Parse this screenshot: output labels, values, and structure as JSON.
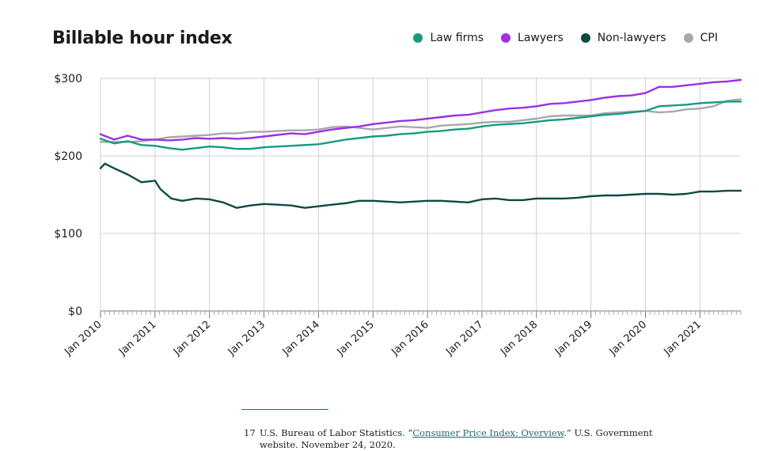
{
  "chart_data": {
    "type": "line",
    "title": "Billable hour index",
    "ylim": [
      0,
      300
    ],
    "y_ticks": [
      "$0",
      "$100",
      "$200",
      "$300"
    ],
    "x_ticks": [
      "Jan 2010",
      "Jan 2011",
      "Jan 2012",
      "Jan 2013",
      "Jan 2014",
      "Jan 2015",
      "Jan 2016",
      "Jan 2017",
      "Jan 2018",
      "Jan 2019",
      "Jan 2020",
      "Jan 2021"
    ],
    "x_range": [
      "2010-01",
      "2021-09"
    ],
    "grid": "vertical yearly lines and horizontal lines at each y tick",
    "legend_position": "top-right",
    "series": [
      {
        "name": "Law firms",
        "color": "#179b80",
        "points": [
          [
            2010.0,
            222
          ],
          [
            2010.25,
            216
          ],
          [
            2010.5,
            219
          ],
          [
            2010.75,
            214
          ],
          [
            2011.0,
            213
          ],
          [
            2011.25,
            210
          ],
          [
            2011.5,
            208
          ],
          [
            2011.75,
            210
          ],
          [
            2012.0,
            212
          ],
          [
            2012.25,
            211
          ],
          [
            2012.5,
            209
          ],
          [
            2012.75,
            209
          ],
          [
            2013.0,
            211
          ],
          [
            2013.25,
            212
          ],
          [
            2013.5,
            213
          ],
          [
            2013.75,
            214
          ],
          [
            2014.0,
            215
          ],
          [
            2014.25,
            218
          ],
          [
            2014.5,
            221
          ],
          [
            2014.75,
            223
          ],
          [
            2015.0,
            225
          ],
          [
            2015.25,
            226
          ],
          [
            2015.5,
            228
          ],
          [
            2015.75,
            229
          ],
          [
            2016.0,
            231
          ],
          [
            2016.25,
            232
          ],
          [
            2016.5,
            234
          ],
          [
            2016.75,
            235
          ],
          [
            2017.0,
            238
          ],
          [
            2017.25,
            240
          ],
          [
            2017.5,
            241
          ],
          [
            2017.75,
            242
          ],
          [
            2018.0,
            244
          ],
          [
            2018.25,
            246
          ],
          [
            2018.5,
            247
          ],
          [
            2018.75,
            249
          ],
          [
            2019.0,
            251
          ],
          [
            2019.25,
            253
          ],
          [
            2019.5,
            254
          ],
          [
            2019.75,
            256
          ],
          [
            2020.0,
            258
          ],
          [
            2020.25,
            264
          ],
          [
            2020.5,
            265
          ],
          [
            2020.75,
            266
          ],
          [
            2021.0,
            268
          ],
          [
            2021.25,
            269
          ],
          [
            2021.5,
            270
          ],
          [
            2021.75,
            270
          ]
        ]
      },
      {
        "name": "Lawyers",
        "color": "#9b30e6",
        "points": [
          [
            2010.0,
            228
          ],
          [
            2010.25,
            221
          ],
          [
            2010.5,
            226
          ],
          [
            2010.75,
            221
          ],
          [
            2011.0,
            221
          ],
          [
            2011.25,
            220
          ],
          [
            2011.5,
            221
          ],
          [
            2011.75,
            223
          ],
          [
            2012.0,
            222
          ],
          [
            2012.25,
            223
          ],
          [
            2012.5,
            222
          ],
          [
            2012.75,
            223
          ],
          [
            2013.0,
            225
          ],
          [
            2013.25,
            227
          ],
          [
            2013.5,
            229
          ],
          [
            2013.75,
            228
          ],
          [
            2014.0,
            231
          ],
          [
            2014.25,
            234
          ],
          [
            2014.5,
            236
          ],
          [
            2014.75,
            238
          ],
          [
            2015.0,
            241
          ],
          [
            2015.25,
            243
          ],
          [
            2015.5,
            245
          ],
          [
            2015.75,
            246
          ],
          [
            2016.0,
            248
          ],
          [
            2016.25,
            250
          ],
          [
            2016.5,
            252
          ],
          [
            2016.75,
            253
          ],
          [
            2017.0,
            256
          ],
          [
            2017.25,
            259
          ],
          [
            2017.5,
            261
          ],
          [
            2017.75,
            262
          ],
          [
            2018.0,
            264
          ],
          [
            2018.25,
            267
          ],
          [
            2018.5,
            268
          ],
          [
            2018.75,
            270
          ],
          [
            2019.0,
            272
          ],
          [
            2019.25,
            275
          ],
          [
            2019.5,
            277
          ],
          [
            2019.75,
            278
          ],
          [
            2020.0,
            281
          ],
          [
            2020.25,
            289
          ],
          [
            2020.5,
            289
          ],
          [
            2020.75,
            291
          ],
          [
            2021.0,
            293
          ],
          [
            2021.25,
            295
          ],
          [
            2021.5,
            296
          ],
          [
            2021.75,
            298
          ]
        ]
      },
      {
        "name": "Non-lawyers",
        "color": "#0e4a44",
        "points": [
          [
            2010.0,
            184
          ],
          [
            2010.08,
            190
          ],
          [
            2010.25,
            184
          ],
          [
            2010.5,
            176
          ],
          [
            2010.75,
            166
          ],
          [
            2011.0,
            168
          ],
          [
            2011.1,
            157
          ],
          [
            2011.3,
            145
          ],
          [
            2011.5,
            142
          ],
          [
            2011.75,
            145
          ],
          [
            2012.0,
            144
          ],
          [
            2012.25,
            140
          ],
          [
            2012.5,
            133
          ],
          [
            2012.75,
            136
          ],
          [
            2013.0,
            138
          ],
          [
            2013.25,
            137
          ],
          [
            2013.5,
            136
          ],
          [
            2013.75,
            133
          ],
          [
            2014.0,
            135
          ],
          [
            2014.25,
            137
          ],
          [
            2014.5,
            139
          ],
          [
            2014.75,
            142
          ],
          [
            2015.0,
            142
          ],
          [
            2015.25,
            141
          ],
          [
            2015.5,
            140
          ],
          [
            2015.75,
            141
          ],
          [
            2016.0,
            142
          ],
          [
            2016.25,
            142
          ],
          [
            2016.5,
            141
          ],
          [
            2016.75,
            140
          ],
          [
            2017.0,
            144
          ],
          [
            2017.25,
            145
          ],
          [
            2017.5,
            143
          ],
          [
            2017.75,
            143
          ],
          [
            2018.0,
            145
          ],
          [
            2018.25,
            145
          ],
          [
            2018.5,
            145
          ],
          [
            2018.75,
            146
          ],
          [
            2019.0,
            148
          ],
          [
            2019.25,
            149
          ],
          [
            2019.5,
            149
          ],
          [
            2019.75,
            150
          ],
          [
            2020.0,
            151
          ],
          [
            2020.25,
            151
          ],
          [
            2020.5,
            150
          ],
          [
            2020.75,
            151
          ],
          [
            2021.0,
            154
          ],
          [
            2021.25,
            154
          ],
          [
            2021.5,
            155
          ],
          [
            2021.75,
            155
          ]
        ]
      },
      {
        "name": "CPI",
        "color": "#a8a8a8",
        "points": [
          [
            2010.0,
            218
          ],
          [
            2010.25,
            218
          ],
          [
            2010.5,
            218
          ],
          [
            2010.75,
            219
          ],
          [
            2011.0,
            221
          ],
          [
            2011.25,
            224
          ],
          [
            2011.5,
            225
          ],
          [
            2011.75,
            226
          ],
          [
            2012.0,
            227
          ],
          [
            2012.25,
            229
          ],
          [
            2012.5,
            229
          ],
          [
            2012.75,
            231
          ],
          [
            2013.0,
            231
          ],
          [
            2013.25,
            232
          ],
          [
            2013.5,
            233
          ],
          [
            2013.75,
            233
          ],
          [
            2014.0,
            234
          ],
          [
            2014.25,
            237
          ],
          [
            2014.5,
            238
          ],
          [
            2014.75,
            236
          ],
          [
            2015.0,
            234
          ],
          [
            2015.25,
            236
          ],
          [
            2015.5,
            238
          ],
          [
            2015.75,
            237
          ],
          [
            2016.0,
            236
          ],
          [
            2016.25,
            239
          ],
          [
            2016.5,
            240
          ],
          [
            2016.75,
            241
          ],
          [
            2017.0,
            243
          ],
          [
            2017.25,
            244
          ],
          [
            2017.5,
            244
          ],
          [
            2017.75,
            246
          ],
          [
            2018.0,
            248
          ],
          [
            2018.25,
            251
          ],
          [
            2018.5,
            252
          ],
          [
            2018.75,
            252
          ],
          [
            2019.0,
            252
          ],
          [
            2019.25,
            255
          ],
          [
            2019.5,
            256
          ],
          [
            2019.75,
            257
          ],
          [
            2020.0,
            258
          ],
          [
            2020.25,
            256
          ],
          [
            2020.5,
            257
          ],
          [
            2020.75,
            260
          ],
          [
            2021.0,
            261
          ],
          [
            2021.25,
            264
          ],
          [
            2021.5,
            271
          ],
          [
            2021.75,
            273
          ]
        ]
      }
    ]
  },
  "footnote": {
    "number": "17",
    "prefix": "U.S. Bureau of Labor Statistics. “",
    "link_text": "Consumer Price Index: Overview",
    "suffix": ".” U.S. Government",
    "line2": "website. November 24, 2020."
  }
}
